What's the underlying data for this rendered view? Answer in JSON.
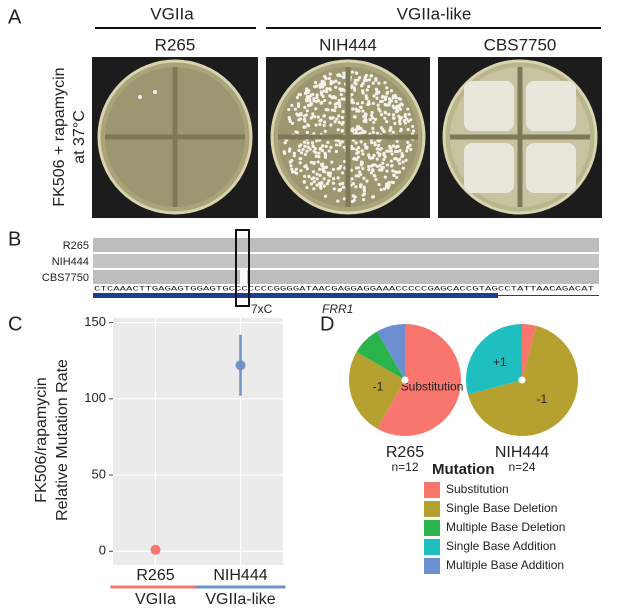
{
  "panel_a": {
    "label": "A",
    "groups": [
      "VGIIa",
      "VGIIa-like"
    ],
    "strains": [
      "R265",
      "NIH444",
      "CBS7750"
    ],
    "ylabel_lines": [
      "FK506 + rapamycin",
      "at 37°C"
    ]
  },
  "panel_b": {
    "label": "B",
    "tracks": [
      "R265",
      "NIH444",
      "CBS7750"
    ],
    "sequence": "CTCAAACTTGAGAGTGGAGTGCCCCCCCGGGGATAACGAGGAGGAAACCCCCGAGCACCGTAGCCTATTAACAGACAT",
    "annotation": "7xC",
    "gene": "FRR1"
  },
  "panel_c": {
    "label": "C"
  },
  "panel_d": {
    "label": "D",
    "legend_title": "Mutation"
  },
  "chart_data": [
    {
      "type": "scatter",
      "ylabel_lines": [
        "FK506/rapamycin",
        "Relative Mutation Rate"
      ],
      "categories": [
        "R265",
        "NIH444"
      ],
      "values": [
        1,
        122
      ],
      "errors": [
        0.5,
        20
      ],
      "colors": [
        "#f8766d",
        "#6f93c8"
      ],
      "groups": [
        {
          "name": "VGIIa",
          "color": "#f8766d"
        },
        {
          "name": "VGIIa-like",
          "color": "#6f93c8"
        }
      ],
      "ylim": [
        -9,
        153
      ],
      "yticks": [
        0,
        50,
        100,
        150
      ],
      "grid": true
    },
    {
      "type": "pie",
      "title": "R265",
      "subtitle": "n=12",
      "categories": [
        "Substitution",
        "Single Base Deletion",
        "Multiple Base Deletion",
        "Single Base Addition",
        "Multiple Base Addition"
      ],
      "values": [
        7,
        3,
        1,
        0,
        1
      ],
      "slice_labels": [
        "Substitution",
        "-1",
        null,
        null,
        null
      ],
      "colors": [
        "#f8766d",
        "#b5a030",
        "#2bb34b",
        "#1fbfc0",
        "#6b8fd0"
      ]
    },
    {
      "type": "pie",
      "title": "NIH444",
      "subtitle": "n=24",
      "categories": [
        "Substitution",
        "Single Base Deletion",
        "Multiple Base Deletion",
        "Single Base Addition",
        "Multiple Base Addition"
      ],
      "values": [
        1,
        16,
        0,
        7,
        0
      ],
      "slice_labels": [
        null,
        "-1",
        null,
        "+1",
        null
      ],
      "colors": [
        "#f8766d",
        "#b5a030",
        "#2bb34b",
        "#1fbfc0",
        "#6b8fd0"
      ]
    }
  ]
}
